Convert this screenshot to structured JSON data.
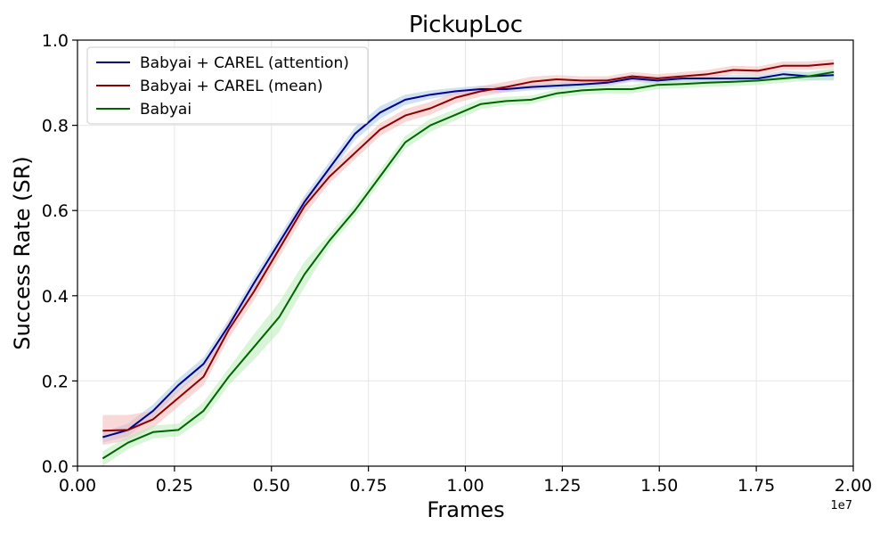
{
  "chart_data": {
    "type": "line",
    "title": "PickupLoc",
    "xlabel": "Frames",
    "ylabel": "Success Rate (SR)",
    "x_offset_label": "1e7",
    "xlim": [
      0.0,
      2.0
    ],
    "ylim": [
      0.0,
      1.0
    ],
    "grid": true,
    "legend_position": "top-left",
    "x_ticks": [
      "0.00",
      "0.25",
      "0.50",
      "0.75",
      "1.00",
      "1.25",
      "1.50",
      "1.75",
      "2.00"
    ],
    "y_ticks": [
      "0.0",
      "0.2",
      "0.4",
      "0.6",
      "0.8",
      "1.0"
    ],
    "x": [
      0.065,
      0.13,
      0.195,
      0.26,
      0.325,
      0.39,
      0.455,
      0.52,
      0.585,
      0.65,
      0.715,
      0.78,
      0.845,
      0.91,
      0.975,
      1.04,
      1.105,
      1.17,
      1.235,
      1.3,
      1.365,
      1.43,
      1.495,
      1.56,
      1.625,
      1.69,
      1.755,
      1.82,
      1.885,
      1.95
    ],
    "series": [
      {
        "name": "Babyai + CAREL (attention)",
        "color": "#00008b",
        "band_color": "#a8c8e8",
        "values": [
          0.068,
          0.085,
          0.13,
          0.19,
          0.24,
          0.33,
          0.43,
          0.525,
          0.62,
          0.7,
          0.78,
          0.83,
          0.86,
          0.872,
          0.88,
          0.885,
          0.885,
          0.89,
          0.893,
          0.896,
          0.9,
          0.91,
          0.905,
          0.91,
          0.91,
          0.91,
          0.91,
          0.92,
          0.915,
          0.918
        ],
        "lower": [
          0.055,
          0.07,
          0.115,
          0.175,
          0.225,
          0.315,
          0.415,
          0.51,
          0.605,
          0.685,
          0.765,
          0.815,
          0.848,
          0.862,
          0.872,
          0.877,
          0.877,
          0.882,
          0.885,
          0.888,
          0.892,
          0.902,
          0.897,
          0.902,
          0.902,
          0.902,
          0.902,
          0.912,
          0.905,
          0.905
        ],
        "upper": [
          0.08,
          0.1,
          0.145,
          0.205,
          0.255,
          0.345,
          0.445,
          0.54,
          0.635,
          0.715,
          0.795,
          0.845,
          0.872,
          0.882,
          0.888,
          0.893,
          0.893,
          0.898,
          0.9,
          0.904,
          0.91,
          0.918,
          0.915,
          0.918,
          0.918,
          0.918,
          0.918,
          0.928,
          0.925,
          0.93
        ]
      },
      {
        "name": "Babyai + CAREL (mean)",
        "color": "#8b0000",
        "band_color": "#f4b8b8",
        "values": [
          0.083,
          0.085,
          0.11,
          0.16,
          0.21,
          0.32,
          0.41,
          0.51,
          0.61,
          0.68,
          0.735,
          0.79,
          0.823,
          0.84,
          0.865,
          0.88,
          0.89,
          0.902,
          0.908,
          0.905,
          0.905,
          0.915,
          0.91,
          0.915,
          0.92,
          0.93,
          0.928,
          0.94,
          0.94,
          0.945
        ],
        "lower": [
          0.05,
          0.06,
          0.09,
          0.14,
          0.19,
          0.3,
          0.39,
          0.49,
          0.59,
          0.665,
          0.72,
          0.775,
          0.808,
          0.825,
          0.852,
          0.868,
          0.878,
          0.89,
          0.898,
          0.895,
          0.895,
          0.905,
          0.9,
          0.905,
          0.91,
          0.92,
          0.918,
          0.93,
          0.93,
          0.935
        ],
        "upper": [
          0.12,
          0.12,
          0.13,
          0.18,
          0.23,
          0.34,
          0.43,
          0.53,
          0.63,
          0.695,
          0.75,
          0.805,
          0.838,
          0.855,
          0.878,
          0.892,
          0.902,
          0.914,
          0.918,
          0.915,
          0.915,
          0.925,
          0.92,
          0.925,
          0.93,
          0.94,
          0.938,
          0.95,
          0.95,
          0.955
        ]
      },
      {
        "name": "Babyai",
        "color": "#006400",
        "band_color": "#b8ecb8",
        "values": [
          0.018,
          0.055,
          0.08,
          0.085,
          0.13,
          0.21,
          0.28,
          0.35,
          0.45,
          0.53,
          0.6,
          0.68,
          0.76,
          0.8,
          0.825,
          0.85,
          0.857,
          0.86,
          0.875,
          0.882,
          0.885,
          0.885,
          0.895,
          0.897,
          0.9,
          0.902,
          0.905,
          0.91,
          0.915,
          0.925
        ],
        "lower": [
          0.0,
          0.04,
          0.065,
          0.07,
          0.11,
          0.19,
          0.25,
          0.315,
          0.42,
          0.515,
          0.585,
          0.665,
          0.745,
          0.785,
          0.812,
          0.838,
          0.847,
          0.85,
          0.865,
          0.872,
          0.875,
          0.875,
          0.885,
          0.887,
          0.89,
          0.892,
          0.895,
          0.9,
          0.905,
          0.91
        ],
        "upper": [
          0.035,
          0.07,
          0.095,
          0.1,
          0.15,
          0.23,
          0.31,
          0.385,
          0.48,
          0.545,
          0.615,
          0.695,
          0.775,
          0.815,
          0.838,
          0.862,
          0.867,
          0.87,
          0.885,
          0.892,
          0.895,
          0.895,
          0.905,
          0.907,
          0.91,
          0.912,
          0.915,
          0.92,
          0.925,
          0.935
        ]
      }
    ]
  }
}
